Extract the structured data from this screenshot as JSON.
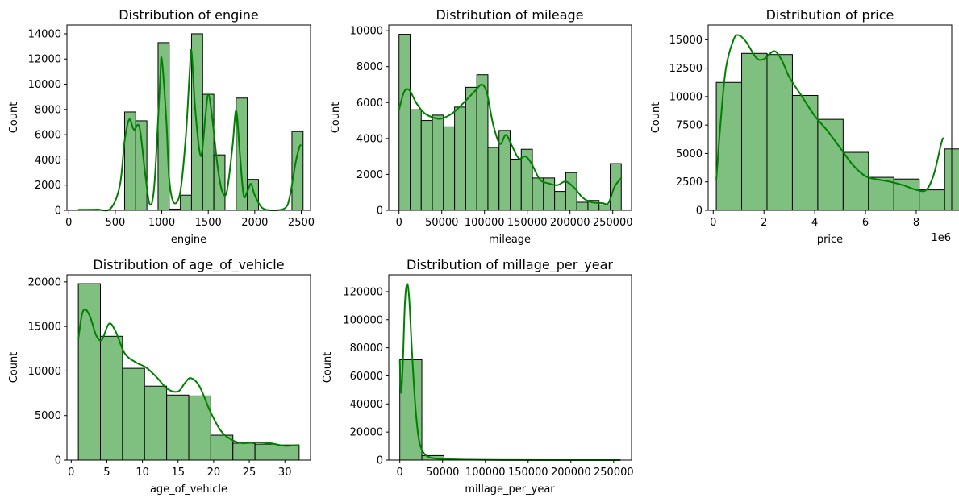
{
  "chart_data": [
    {
      "type": "bar",
      "title": "Distribution of engine",
      "xlabel": "engine",
      "ylabel": "Count",
      "xlim": [
        -20,
        2600
      ],
      "ylim": [
        0,
        14700
      ],
      "xticks": [
        0,
        500,
        1000,
        1500,
        2000,
        2500
      ],
      "yticks": [
        0,
        2000,
        4000,
        6000,
        8000,
        10000,
        12000,
        14000
      ],
      "offset_label": "",
      "bars": [
        {
          "x0": 600,
          "x1": 720,
          "value": 7800
        },
        {
          "x0": 720,
          "x1": 840,
          "value": 7100
        },
        {
          "x0": 960,
          "x1": 1080,
          "value": 13300
        },
        {
          "x0": 1080,
          "x1": 1200,
          "value": 100
        },
        {
          "x0": 1200,
          "x1": 1320,
          "value": 1200
        },
        {
          "x0": 1320,
          "x1": 1440,
          "value": 14000
        },
        {
          "x0": 1440,
          "x1": 1560,
          "value": 9200
        },
        {
          "x0": 1560,
          "x1": 1680,
          "value": 4400
        },
        {
          "x0": 1800,
          "x1": 1920,
          "value": 8900
        },
        {
          "x0": 1920,
          "x1": 2040,
          "value": 2450
        },
        {
          "x0": 2040,
          "x1": 2160,
          "value": 0
        },
        {
          "x0": 2400,
          "x1": 2520,
          "value": 6250
        }
      ],
      "kde": [
        [
          100,
          50
        ],
        [
          300,
          60
        ],
        [
          450,
          150
        ],
        [
          550,
          2000
        ],
        [
          600,
          5500
        ],
        [
          650,
          7200
        ],
        [
          700,
          6400
        ],
        [
          760,
          6600
        ],
        [
          820,
          3000
        ],
        [
          870,
          500
        ],
        [
          920,
          2000
        ],
        [
          980,
          10000
        ],
        [
          1000,
          12000
        ],
        [
          1050,
          7000
        ],
        [
          1080,
          2500
        ],
        [
          1130,
          600
        ],
        [
          1200,
          1500
        ],
        [
          1260,
          6000
        ],
        [
          1300,
          11000
        ],
        [
          1320,
          12600
        ],
        [
          1360,
          8000
        ],
        [
          1420,
          4300
        ],
        [
          1470,
          7500
        ],
        [
          1500,
          9200
        ],
        [
          1540,
          7500
        ],
        [
          1600,
          3500
        ],
        [
          1650,
          1500
        ],
        [
          1700,
          1500
        ],
        [
          1760,
          5000
        ],
        [
          1800,
          7900
        ],
        [
          1840,
          4500
        ],
        [
          1880,
          1200
        ],
        [
          1920,
          1500
        ],
        [
          1960,
          2100
        ],
        [
          2000,
          1200
        ],
        [
          2080,
          200
        ],
        [
          2200,
          0
        ],
        [
          2330,
          200
        ],
        [
          2380,
          1200
        ],
        [
          2440,
          3800
        ],
        [
          2480,
          5000
        ],
        [
          2500,
          5200
        ]
      ],
      "color": "#008000",
      "bar_fill": "#7fbf7f"
    },
    {
      "type": "bar",
      "title": "Distribution of mileage",
      "xlabel": "mileage",
      "ylabel": "Count",
      "xlim": [
        -12000,
        272000
      ],
      "ylim": [
        0,
        10320
      ],
      "xticks": [
        0,
        50000,
        100000,
        150000,
        200000,
        250000
      ],
      "yticks": [
        0,
        2000,
        4000,
        6000,
        8000,
        10000
      ],
      "offset_label": "",
      "bars": [
        {
          "x0": 0,
          "x1": 13000,
          "value": 9800
        },
        {
          "x0": 13000,
          "x1": 26000,
          "value": 5600
        },
        {
          "x0": 26000,
          "x1": 39000,
          "value": 5000
        },
        {
          "x0": 39000,
          "x1": 52000,
          "value": 5300
        },
        {
          "x0": 52000,
          "x1": 65000,
          "value": 4650
        },
        {
          "x0": 65000,
          "x1": 78000,
          "value": 5750
        },
        {
          "x0": 78000,
          "x1": 91000,
          "value": 6850
        },
        {
          "x0": 91000,
          "x1": 104000,
          "value": 7550
        },
        {
          "x0": 104000,
          "x1": 117000,
          "value": 3500
        },
        {
          "x0": 117000,
          "x1": 130000,
          "value": 4450
        },
        {
          "x0": 130000,
          "x1": 143000,
          "value": 2850
        },
        {
          "x0": 143000,
          "x1": 156000,
          "value": 3400
        },
        {
          "x0": 156000,
          "x1": 169000,
          "value": 1800
        },
        {
          "x0": 169000,
          "x1": 182000,
          "value": 1800
        },
        {
          "x0": 182000,
          "x1": 195000,
          "value": 1050
        },
        {
          "x0": 195000,
          "x1": 208000,
          "value": 2100
        },
        {
          "x0": 208000,
          "x1": 221000,
          "value": 450
        },
        {
          "x0": 221000,
          "x1": 234000,
          "value": 550
        },
        {
          "x0": 234000,
          "x1": 247000,
          "value": 300
        },
        {
          "x0": 247000,
          "x1": 260000,
          "value": 2600
        }
      ],
      "kde": [
        [
          0,
          5600
        ],
        [
          6000,
          6600
        ],
        [
          12000,
          6700
        ],
        [
          20000,
          6000
        ],
        [
          30000,
          5400
        ],
        [
          45000,
          5100
        ],
        [
          55000,
          5200
        ],
        [
          65000,
          5500
        ],
        [
          80000,
          6200
        ],
        [
          90000,
          6700
        ],
        [
          97000,
          7000
        ],
        [
          103000,
          6500
        ],
        [
          110000,
          4800
        ],
        [
          118000,
          3700
        ],
        [
          125000,
          4200
        ],
        [
          132000,
          3600
        ],
        [
          140000,
          2900
        ],
        [
          148000,
          3000
        ],
        [
          155000,
          2600
        ],
        [
          165000,
          1700
        ],
        [
          175000,
          1500
        ],
        [
          185000,
          1400
        ],
        [
          195000,
          1600
        ],
        [
          205000,
          1250
        ],
        [
          215000,
          700
        ],
        [
          225000,
          450
        ],
        [
          238000,
          400
        ],
        [
          245000,
          400
        ],
        [
          252000,
          1300
        ],
        [
          260000,
          1800
        ]
      ],
      "color": "#008000",
      "bar_fill": "#7fbf7f"
    },
    {
      "type": "bar",
      "title": "Distribution of price",
      "xlabel": "price",
      "ylabel": "Count",
      "xlim": [
        -0.2,
        9.4
      ],
      "ylim": [
        0,
        16300
      ],
      "xticks": [
        0,
        2,
        4,
        6,
        8
      ],
      "yticks": [
        0,
        2500,
        5000,
        7500,
        10000,
        12500,
        15000
      ],
      "offset_label": "1e6",
      "bars": [
        {
          "x0": 0.12,
          "x1": 1.12,
          "value": 11250
        },
        {
          "x0": 1.12,
          "x1": 2.12,
          "value": 13800
        },
        {
          "x0": 2.12,
          "x1": 3.12,
          "value": 13700
        },
        {
          "x0": 3.12,
          "x1": 4.12,
          "value": 10100
        },
        {
          "x0": 4.12,
          "x1": 5.12,
          "value": 8000
        },
        {
          "x0": 5.12,
          "x1": 6.12,
          "value": 5100
        },
        {
          "x0": 6.12,
          "x1": 7.12,
          "value": 2900
        },
        {
          "x0": 7.12,
          "x1": 8.12,
          "value": 2750
        },
        {
          "x0": 8.12,
          "x1": 9.12,
          "value": 1800
        },
        {
          "x0": 9.12,
          "x1": 10.12,
          "value": 5400
        }
      ],
      "kde": [
        [
          0.12,
          2700
        ],
        [
          0.3,
          8000
        ],
        [
          0.5,
          12500
        ],
        [
          0.8,
          15000
        ],
        [
          1.0,
          15400
        ],
        [
          1.3,
          14800
        ],
        [
          1.7,
          13400
        ],
        [
          2.0,
          13300
        ],
        [
          2.4,
          14000
        ],
        [
          2.7,
          13200
        ],
        [
          3.0,
          11700
        ],
        [
          3.5,
          10000
        ],
        [
          4.0,
          8300
        ],
        [
          4.5,
          7000
        ],
        [
          5.0,
          5500
        ],
        [
          5.5,
          4000
        ],
        [
          6.0,
          3000
        ],
        [
          6.5,
          2700
        ],
        [
          7.0,
          2500
        ],
        [
          7.5,
          2200
        ],
        [
          8.0,
          1800
        ],
        [
          8.4,
          1800
        ],
        [
          8.7,
          3200
        ],
        [
          9.0,
          6000
        ],
        [
          9.1,
          6350
        ]
      ],
      "color": "#008000",
      "bar_fill": "#7fbf7f"
    },
    {
      "type": "bar",
      "title": "Distribution of age_of_vehicle",
      "xlabel": "age_of_vehicle",
      "ylabel": "Count",
      "xlim": [
        -0.6,
        33.6
      ],
      "ylim": [
        0,
        20800
      ],
      "xticks": [
        0,
        5,
        10,
        15,
        20,
        25,
        30
      ],
      "yticks": [
        0,
        5000,
        10000,
        15000,
        20000
      ],
      "offset_label": "",
      "bars": [
        {
          "x0": 1,
          "x1": 4.1,
          "value": 19800
        },
        {
          "x0": 4.1,
          "x1": 7.2,
          "value": 13900
        },
        {
          "x0": 7.2,
          "x1": 10.3,
          "value": 10300
        },
        {
          "x0": 10.3,
          "x1": 13.4,
          "value": 8300
        },
        {
          "x0": 13.4,
          "x1": 16.5,
          "value": 7300
        },
        {
          "x0": 16.5,
          "x1": 19.6,
          "value": 7200
        },
        {
          "x0": 19.6,
          "x1": 22.7,
          "value": 2800
        },
        {
          "x0": 22.7,
          "x1": 25.8,
          "value": 1900
        },
        {
          "x0": 25.8,
          "x1": 28.9,
          "value": 1800
        },
        {
          "x0": 28.9,
          "x1": 32,
          "value": 1700
        }
      ],
      "kde": [
        [
          1,
          13600
        ],
        [
          1.5,
          16300
        ],
        [
          2,
          16900
        ],
        [
          2.7,
          16000
        ],
        [
          3.5,
          14000
        ],
        [
          4.3,
          13500
        ],
        [
          5.3,
          15300
        ],
        [
          6.2,
          14500
        ],
        [
          7.5,
          12000
        ],
        [
          9,
          11000
        ],
        [
          10.5,
          10400
        ],
        [
          12,
          9300
        ],
        [
          13.5,
          8000
        ],
        [
          15,
          7700
        ],
        [
          16,
          8700
        ],
        [
          16.8,
          9200
        ],
        [
          18,
          8300
        ],
        [
          19.5,
          5500
        ],
        [
          21,
          3300
        ],
        [
          22.5,
          2300
        ],
        [
          24,
          1900
        ],
        [
          26,
          2000
        ],
        [
          28,
          1900
        ],
        [
          30,
          1600
        ],
        [
          32,
          1700
        ]
      ],
      "color": "#008000",
      "bar_fill": "#7fbf7f"
    },
    {
      "type": "bar",
      "title": "Distribution of millage_per_year",
      "xlabel": "millage_per_year",
      "ylabel": "Count",
      "xlim": [
        -12900,
        270900
      ],
      "ylim": [
        0,
        132000
      ],
      "xticks": [
        0,
        50000,
        100000,
        150000,
        200000,
        250000
      ],
      "yticks": [
        0,
        20000,
        40000,
        60000,
        80000,
        100000,
        120000
      ],
      "offset_label": "",
      "bars": [
        {
          "x0": 0,
          "x1": 25800,
          "value": 71500
        },
        {
          "x0": 25800,
          "x1": 51600,
          "value": 3200
        },
        {
          "x0": 51600,
          "x1": 77400,
          "value": 300
        },
        {
          "x0": 77400,
          "x1": 103200,
          "value": 100
        },
        {
          "x0": 103200,
          "x1": 129000,
          "value": 50
        },
        {
          "x0": 129000,
          "x1": 154800,
          "value": 30
        },
        {
          "x0": 154800,
          "x1": 180600,
          "value": 20
        },
        {
          "x0": 180600,
          "x1": 206400,
          "value": 20
        },
        {
          "x0": 206400,
          "x1": 232200,
          "value": 10
        },
        {
          "x0": 232200,
          "x1": 258000,
          "value": 10
        }
      ],
      "kde": [
        [
          0,
          71000
        ],
        [
          1500,
          48000
        ],
        [
          3500,
          68000
        ],
        [
          6000,
          112000
        ],
        [
          8500,
          125500
        ],
        [
          11000,
          115000
        ],
        [
          14000,
          80000
        ],
        [
          18000,
          40000
        ],
        [
          22000,
          16000
        ],
        [
          27000,
          6000
        ],
        [
          35000,
          2000
        ],
        [
          50000,
          800
        ],
        [
          80000,
          300
        ],
        [
          120000,
          100
        ],
        [
          180000,
          0
        ],
        [
          258000,
          0
        ]
      ],
      "color": "#008000",
      "bar_fill": "#7fbf7f"
    }
  ]
}
